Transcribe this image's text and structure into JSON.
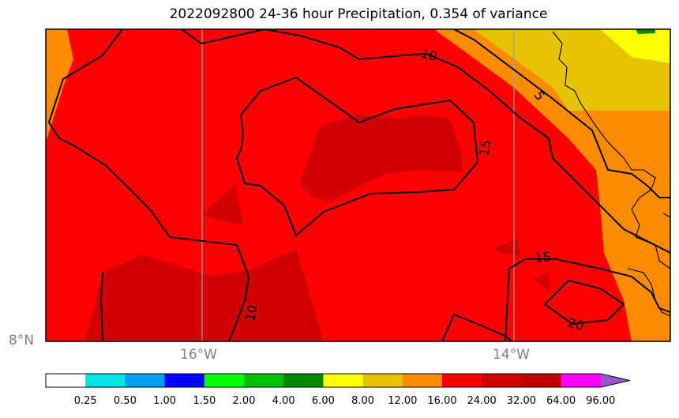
{
  "title": "2022092800 24-36 hour Precipitation, 0.354 of variance",
  "map": {
    "lon_labels": [
      "16°W",
      "14°W"
    ],
    "lat_labels": [
      "8°N"
    ],
    "contour_labels": [
      "10",
      "5",
      "15",
      "15",
      "20",
      "10"
    ]
  },
  "colorbar": {
    "colors": [
      "#ffffff",
      "#00e5e5",
      "#00a0f0",
      "#0000ff",
      "#00ff00",
      "#00c000",
      "#008a00",
      "#ffff00",
      "#e6c300",
      "#ff8c00",
      "#ff0000",
      "#d20000",
      "#c40000",
      "#ff00ff",
      "#9955cc"
    ],
    "labels": [
      "0.25",
      "0.50",
      "1.00",
      "1.50",
      "2.00",
      "4.00",
      "6.00",
      "8.00",
      "12.00",
      "16.00",
      "24.00",
      "32.00",
      "64.00",
      "96.00"
    ]
  }
}
